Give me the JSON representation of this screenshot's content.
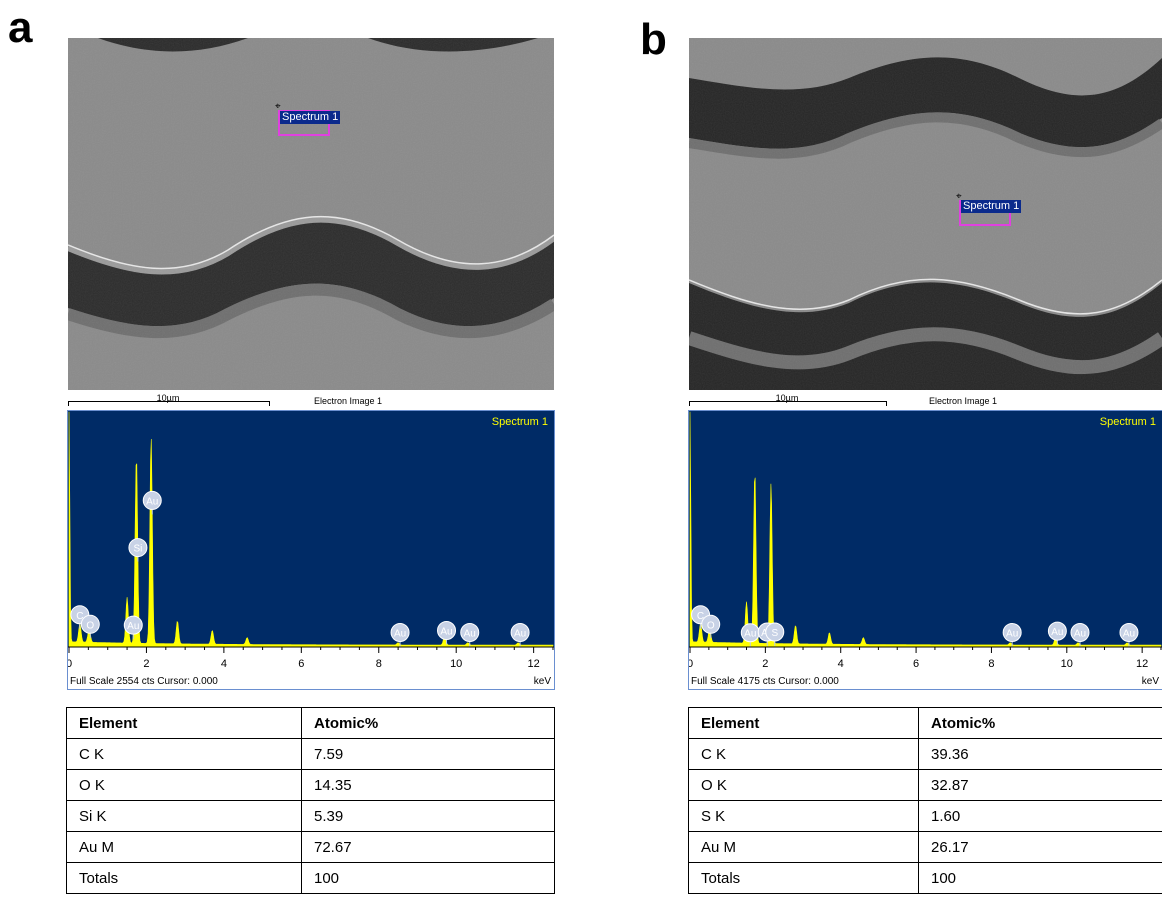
{
  "panels": [
    {
      "letter": "a",
      "spectrum_tag": "Spectrum 1",
      "scale_text": "10µm",
      "image_label": "Electron Image 1",
      "full_scale_text": "Full Scale 2554 cts Cursor: 0.000",
      "kev_label": "keV",
      "table": {
        "headers": [
          "Element",
          "Atomic%"
        ],
        "rows": [
          [
            "C K",
            "7.59"
          ],
          [
            "O K",
            "14.35"
          ],
          [
            "Si K",
            "5.39"
          ],
          [
            "Au M",
            "72.67"
          ],
          [
            "Totals",
            "100"
          ]
        ]
      }
    },
    {
      "letter": "b",
      "spectrum_tag": "Spectrum 1",
      "scale_text": "10µm",
      "image_label": "Electron Image 1",
      "full_scale_text": "Full Scale 4175 cts Cursor: 0.000",
      "kev_label": "keV",
      "table": {
        "headers": [
          "Element",
          "Atomic%"
        ],
        "rows": [
          [
            "C K",
            "39.36"
          ],
          [
            "O K",
            "32.87"
          ],
          [
            "S K",
            "1.60"
          ],
          [
            "Au M",
            "26.17"
          ],
          [
            "Totals",
            "100"
          ]
        ]
      }
    }
  ],
  "chart_data": [
    {
      "type": "line",
      "title": "Spectrum 1",
      "xlabel": "keV",
      "xlim": [
        0,
        12.5
      ],
      "xticks": [
        0,
        2,
        4,
        6,
        8,
        10,
        12
      ],
      "background": "#002b66",
      "line_color": "#ffff00",
      "full_scale_counts": 2554,
      "peaks": [
        {
          "label": "C",
          "x": 0.28,
          "rel": 0.08
        },
        {
          "label": "O",
          "x": 0.52,
          "rel": 0.06
        },
        {
          "label": "Si",
          "x": 1.74,
          "rel": 0.82
        },
        {
          "label": "Au",
          "x": 1.5,
          "rel": 0.2
        },
        {
          "label": "Au",
          "x": 2.12,
          "rel": 0.9
        },
        {
          "label": "Au",
          "x": 2.8,
          "rel": 0.1
        },
        {
          "label": "Au",
          "x": 3.7,
          "rel": 0.06
        },
        {
          "label": "Au",
          "x": 4.6,
          "rel": 0.03
        },
        {
          "label": "Au",
          "x": 8.5,
          "rel": 0.01
        },
        {
          "label": "Au",
          "x": 9.7,
          "rel": 0.04
        },
        {
          "label": "Au",
          "x": 10.3,
          "rel": 0.01
        },
        {
          "label": "Au",
          "x": 11.6,
          "rel": 0.01
        }
      ],
      "peak_labels": [
        {
          "label": "C",
          "x": 0.28
        },
        {
          "label": "O",
          "x": 0.55
        },
        {
          "label": "Si",
          "x": 1.78
        },
        {
          "label": "Au",
          "x": 1.66
        },
        {
          "label": "Au",
          "x": 2.15
        },
        {
          "label": "Au",
          "x": 8.55
        },
        {
          "label": "Au",
          "x": 9.75
        },
        {
          "label": "Au",
          "x": 10.35
        },
        {
          "label": "Au",
          "x": 11.65
        }
      ]
    },
    {
      "type": "line",
      "title": "Spectrum 1",
      "xlabel": "keV",
      "xlim": [
        0,
        12.5
      ],
      "xticks": [
        0,
        2,
        4,
        6,
        8,
        10,
        12
      ],
      "background": "#002b66",
      "line_color": "#ffff00",
      "full_scale_counts": 4175,
      "peaks": [
        {
          "label": "C",
          "x": 0.28,
          "rel": 0.08
        },
        {
          "label": "O",
          "x": 0.52,
          "rel": 0.06
        },
        {
          "label": "Au",
          "x": 1.5,
          "rel": 0.18
        },
        {
          "label": "Au",
          "x": 1.72,
          "rel": 0.75
        },
        {
          "label": "S",
          "x": 2.15,
          "rel": 0.7
        },
        {
          "label": "Au",
          "x": 2.8,
          "rel": 0.08
        },
        {
          "label": "Au",
          "x": 3.7,
          "rel": 0.05
        },
        {
          "label": "Au",
          "x": 4.6,
          "rel": 0.03
        },
        {
          "label": "Au",
          "x": 8.5,
          "rel": 0.01
        },
        {
          "label": "Au",
          "x": 9.7,
          "rel": 0.03
        },
        {
          "label": "Au",
          "x": 10.3,
          "rel": 0.01
        },
        {
          "label": "Au",
          "x": 11.6,
          "rel": 0.01
        }
      ],
      "peak_labels": [
        {
          "label": "C",
          "x": 0.28
        },
        {
          "label": "O",
          "x": 0.55
        },
        {
          "label": "Au",
          "x": 1.6
        },
        {
          "label": "Au",
          "x": 2.05
        },
        {
          "label": "S",
          "x": 2.25
        },
        {
          "label": "Au",
          "x": 8.55
        },
        {
          "label": "Au",
          "x": 9.75
        },
        {
          "label": "Au",
          "x": 10.35
        },
        {
          "label": "Au",
          "x": 11.65
        }
      ]
    }
  ]
}
